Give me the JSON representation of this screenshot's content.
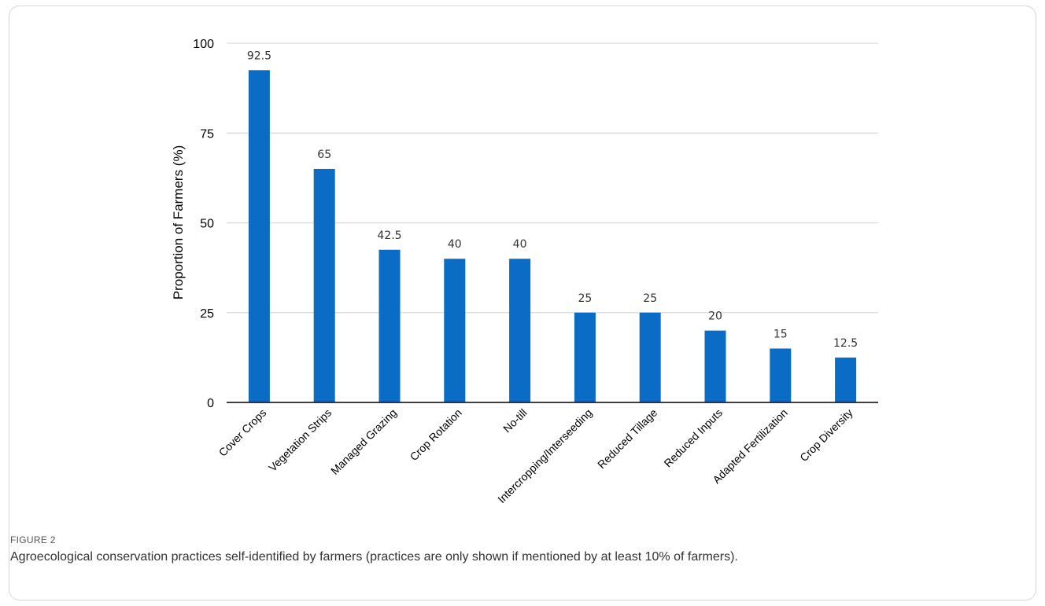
{
  "figure": {
    "label": "FIGURE 2",
    "caption": "Agroecological conservation practices self-identified by farmers (practices are only shown if mentioned by at least 10% of farmers)."
  },
  "chart_data": {
    "type": "bar",
    "categories": [
      "Cover Crops",
      "Vegetation Strips",
      "Managed Grazing",
      "Crop Rotation",
      "No-till",
      "Intercropping/Interseeding",
      "Reduced Tillage",
      "Reduced Inputs",
      "Adapted Fertilization",
      "Crop Diversity"
    ],
    "values": [
      92.5,
      65,
      42.5,
      40,
      40,
      25,
      25,
      20,
      15,
      12.5
    ],
    "data_labels": [
      "92.5",
      "65",
      "42.5",
      "40",
      "40",
      "25",
      "25",
      "20",
      "15",
      "12.5"
    ],
    "title": "",
    "xlabel": "",
    "ylabel": "Proportion of Farmers (%)",
    "ylim": [
      0,
      100
    ],
    "yticks": [
      0,
      25,
      50,
      75,
      100
    ],
    "grid": true,
    "legend": "none",
    "bar_color": "#0a6cc4",
    "grid_color": "#d9d9d9",
    "axis_color": "#000000"
  }
}
